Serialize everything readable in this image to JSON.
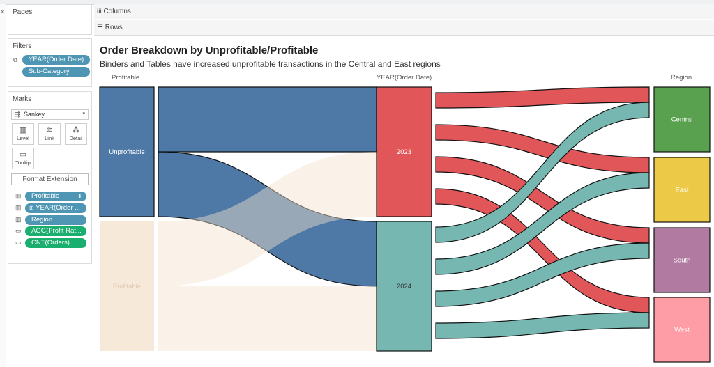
{
  "pages_panel": {
    "title": "Pages"
  },
  "filters_panel": {
    "title": "Filters",
    "items": [
      "YEAR(Order Date)",
      "Sub-Category"
    ]
  },
  "marks_panel": {
    "title": "Marks",
    "mark_type": "Sankey",
    "buttons": [
      {
        "label": "Level",
        "icon": "level-icon"
      },
      {
        "label": "Link",
        "icon": "link-icon"
      },
      {
        "label": "Detail",
        "icon": "detail-icon"
      },
      {
        "label": "Tooltip",
        "icon": "tooltip-icon"
      }
    ],
    "format_extension_label": "Format Extension",
    "fields": [
      {
        "label": "Profitable",
        "color": "blue",
        "icon": "level-icon"
      },
      {
        "label": "YEAR(Order ...",
        "color": "blue",
        "icon": "level-icon"
      },
      {
        "label": "Region",
        "color": "blue",
        "icon": "level-icon"
      },
      {
        "label": "AGG(Profit Rat...",
        "color": "green",
        "icon": "tooltip-icon"
      },
      {
        "label": "CNT(Orders)",
        "color": "green",
        "icon": "tooltip-icon"
      }
    ]
  },
  "shelves": {
    "columns": "Columns",
    "rows": "Rows"
  },
  "sheet": {
    "title": "Order Breakdown by Unprofitable/Profitable",
    "subtitle": "Binders and Tables have increased unprofitable transactions in the Central and East regions",
    "col_headers": {
      "profitable": "Profitable",
      "year": "YEAR(Order Date)",
      "region": "Region"
    }
  },
  "colors": {
    "unprofitable": "#4e79a7",
    "profitable": "#f4e2cc",
    "y2023": "#e15759",
    "y2024": "#76b7b2",
    "central": "#59a14f",
    "east": "#edc948",
    "south": "#b07aa1",
    "west": "#ff9da7"
  },
  "chart_data": {
    "type": "sankey",
    "levels": [
      "Profitable",
      "YEAR(Order Date)",
      "Region"
    ],
    "nodes": {
      "Profitable": [
        "Unprofitable",
        "Profitable"
      ],
      "YEAR(Order Date)": [
        "2023",
        "2024"
      ],
      "Region": [
        "Central",
        "East",
        "South",
        "West"
      ]
    },
    "links_profitable_to_year": [
      {
        "from": "Unprofitable",
        "to": "2023",
        "value": 95
      },
      {
        "from": "Unprofitable",
        "to": "2024",
        "value": 95
      },
      {
        "from": "Profitable",
        "to": "2023",
        "value": 95
      },
      {
        "from": "Profitable",
        "to": "2024",
        "value": 95
      }
    ],
    "links_year_to_region": [
      {
        "from": "2023",
        "to": "Central",
        "value": 24
      },
      {
        "from": "2023",
        "to": "East",
        "value": 24
      },
      {
        "from": "2023",
        "to": "South",
        "value": 24
      },
      {
        "from": "2023",
        "to": "West",
        "value": 24
      },
      {
        "from": "2024",
        "to": "Central",
        "value": 24
      },
      {
        "from": "2024",
        "to": "East",
        "value": 24
      },
      {
        "from": "2024",
        "to": "South",
        "value": 24
      },
      {
        "from": "2024",
        "to": "West",
        "value": 24
      }
    ]
  }
}
